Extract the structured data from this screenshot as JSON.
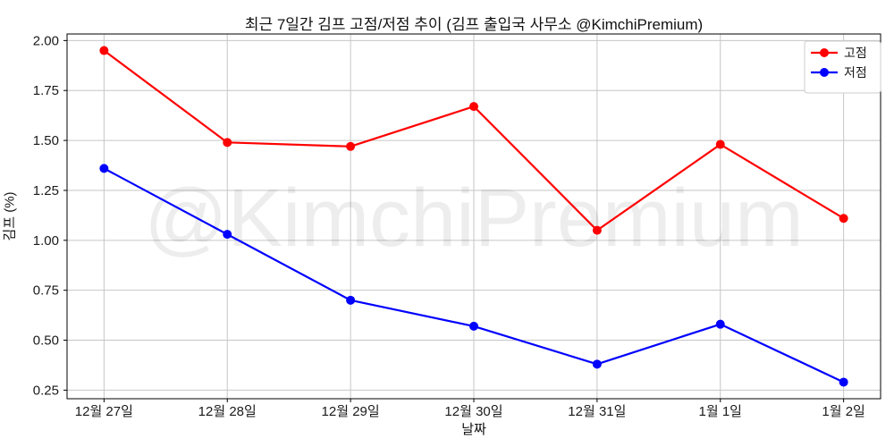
{
  "chart_data": {
    "type": "line",
    "title": "최근 7일간 김프 고점/저점 추이 (김프 출입국 사무소 @KimchiPremium)",
    "xlabel": "날짜",
    "ylabel": "김프 (%)",
    "watermark": "@KimchiPremium",
    "categories": [
      "12월 27일",
      "12월 28일",
      "12월 29일",
      "12월 30일",
      "12월 31일",
      "1월 1일",
      "1월 2일"
    ],
    "series": [
      {
        "name": "고점",
        "color": "#ff0000",
        "values": [
          1.95,
          1.49,
          1.47,
          1.67,
          1.05,
          1.48,
          1.11
        ]
      },
      {
        "name": "저점",
        "color": "#0000ff",
        "values": [
          1.36,
          1.03,
          0.7,
          0.57,
          0.38,
          0.58,
          0.29
        ]
      }
    ],
    "yticks": [
      0.25,
      0.5,
      0.75,
      1.0,
      1.25,
      1.5,
      1.75,
      2.0
    ],
    "ylim": [
      0.207,
      2.033
    ],
    "grid": true,
    "legend_position": "upper-right",
    "colors": {
      "grid": "#c6c6c6",
      "spine": "#000000",
      "tick_text": "#1a1a1a",
      "background": "#ffffff",
      "legend_border": "#cccccc"
    },
    "watermark_opacity": 0.07
  }
}
